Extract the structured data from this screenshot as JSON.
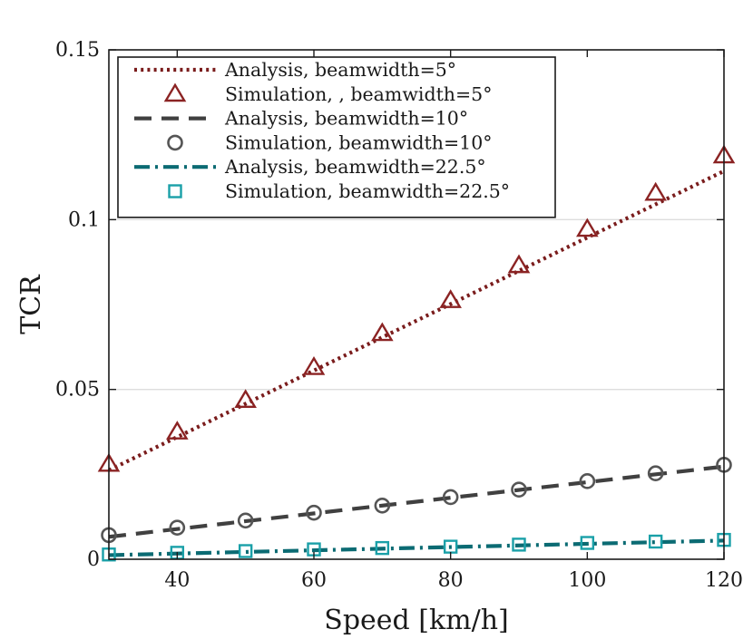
{
  "chart_data": {
    "type": "line",
    "title": "",
    "xlabel": "Speed [km/h]",
    "ylabel": "TCR",
    "xlim": [
      30,
      120
    ],
    "ylim": [
      0,
      0.15
    ],
    "xticks": [
      40,
      60,
      80,
      100,
      120
    ],
    "yticks": [
      0,
      0.05,
      0.1,
      0.15
    ],
    "ytick_labels": [
      "0",
      "0.05",
      "0.1",
      "0.15"
    ],
    "grid": "horizontal",
    "legend_position": "top-left",
    "x": [
      30,
      40,
      50,
      60,
      70,
      80,
      90,
      100,
      110,
      120
    ],
    "series": [
      {
        "name": "Analysis, beamwidth=5°",
        "kind": "analysis",
        "style": "dotted",
        "color": "#7a1c1c",
        "x": [
          30,
          120
        ],
        "values": [
          0.0262,
          0.1143
        ]
      },
      {
        "name": "Simulation, , beamwidth=5°",
        "kind": "simulation",
        "marker": "triangle",
        "color": "#8b2323",
        "values": [
          0.028,
          0.0375,
          0.0468,
          0.0565,
          0.0665,
          0.0762,
          0.0865,
          0.0972,
          0.1078,
          0.1188
        ]
      },
      {
        "name": "Analysis, beamwidth=10°",
        "kind": "analysis",
        "style": "dashed",
        "color": "#404040",
        "x": [
          30,
          120
        ],
        "values": [
          0.0066,
          0.0273
        ]
      },
      {
        "name": "Simulation, beamwidth=10°",
        "kind": "simulation",
        "marker": "circle",
        "color": "#555555",
        "values": [
          0.0071,
          0.0093,
          0.0114,
          0.0137,
          0.0158,
          0.0183,
          0.0205,
          0.023,
          0.0253,
          0.0278
        ]
      },
      {
        "name": "Analysis, beamwidth=22.5°",
        "kind": "analysis",
        "style": "dashdot",
        "color": "#0b6b73",
        "x": [
          30,
          120
        ],
        "values": [
          0.0012,
          0.0055
        ]
      },
      {
        "name": "Simulation, beamwidth=22.5°",
        "kind": "simulation",
        "marker": "square",
        "color": "#1aa0a8",
        "values": [
          0.0014,
          0.0019,
          0.0024,
          0.0029,
          0.0033,
          0.0037,
          0.0043,
          0.0048,
          0.0052,
          0.0057
        ]
      }
    ]
  }
}
